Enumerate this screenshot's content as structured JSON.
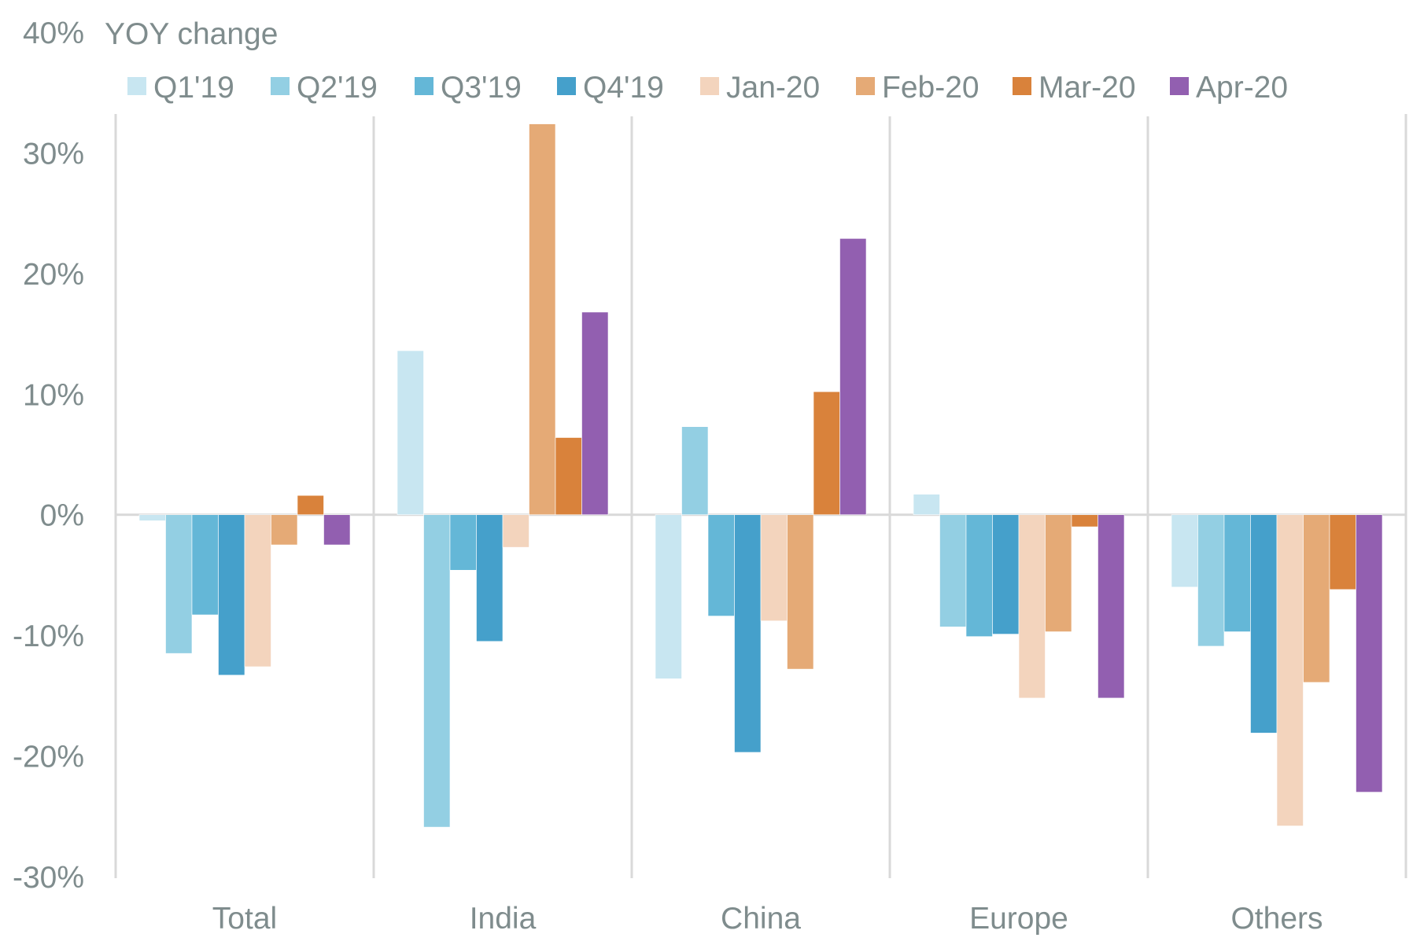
{
  "chart_data": {
    "type": "bar",
    "title": "",
    "xlabel": "",
    "ylabel": "YOY change",
    "ylim": [
      -30,
      40
    ],
    "yticks": [
      40,
      30,
      20,
      10,
      0,
      -10,
      -20,
      -30
    ],
    "ytick_labels": [
      "40%",
      "30%",
      "20%",
      "10%",
      "0%",
      "-10%",
      "-20%",
      "-30%"
    ],
    "grid": false,
    "legend_position": "top",
    "categories": [
      "Total",
      "India",
      "China",
      "Europe",
      "Others"
    ],
    "series": [
      {
        "name": "Q1'19",
        "color": "#c8e6f1",
        "values": [
          -0.5,
          13.6,
          -13.6,
          1.7,
          -6.0
        ]
      },
      {
        "name": "Q2'19",
        "color": "#93cfe3",
        "values": [
          -11.5,
          -25.9,
          7.3,
          -9.3,
          -10.9
        ]
      },
      {
        "name": "Q3'19",
        "color": "#64b7d7",
        "values": [
          -8.3,
          -4.6,
          -8.4,
          -10.1,
          -9.7
        ]
      },
      {
        "name": "Q4'19",
        "color": "#45a0cb",
        "values": [
          -13.3,
          -10.5,
          -19.7,
          -9.9,
          -18.1
        ]
      },
      {
        "name": "Jan-20",
        "color": "#f3d4bd",
        "values": [
          -12.6,
          -2.7,
          -8.8,
          -15.2,
          -25.8
        ]
      },
      {
        "name": "Feb-20",
        "color": "#e5aa76",
        "values": [
          -2.5,
          32.4,
          -12.8,
          -9.7,
          -13.9
        ]
      },
      {
        "name": "Mar-20",
        "color": "#d9823b",
        "values": [
          1.6,
          6.4,
          10.2,
          -1.0,
          -6.2
        ]
      },
      {
        "name": "Apr-20",
        "color": "#925fb0",
        "values": [
          -2.5,
          16.8,
          22.9,
          -15.2,
          -23.0
        ]
      }
    ]
  }
}
